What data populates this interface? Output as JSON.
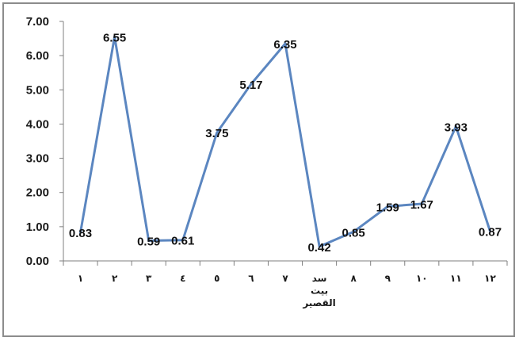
{
  "chart_data": {
    "type": "line",
    "title": "",
    "xlabel": "",
    "ylabel": "",
    "categories": [
      "١",
      "٢",
      "٣",
      "٤",
      "٥",
      "٦",
      "٧",
      "سد بيت القصير",
      "٨",
      "٩",
      "١٠",
      "١١",
      "١٢"
    ],
    "values": [
      0.83,
      6.55,
      0.59,
      0.61,
      3.75,
      5.17,
      6.35,
      0.42,
      0.85,
      1.59,
      1.67,
      3.93,
      0.87
    ],
    "data_labels": [
      "0.83",
      "6.55",
      "0.59",
      "0.61",
      "3.75",
      "5.17",
      "6.35",
      "0.42",
      "0.85",
      "1.59",
      "1.67",
      "3.93",
      "0.87"
    ],
    "ylim": [
      0,
      7
    ],
    "yticks": [
      "0.00",
      "1.00",
      "2.00",
      "3.00",
      "4.00",
      "5.00",
      "6.00",
      "7.00"
    ],
    "grid": false,
    "legend": "none",
    "line_color": "#5b86c0",
    "axis_color": "#7f7f7f"
  }
}
